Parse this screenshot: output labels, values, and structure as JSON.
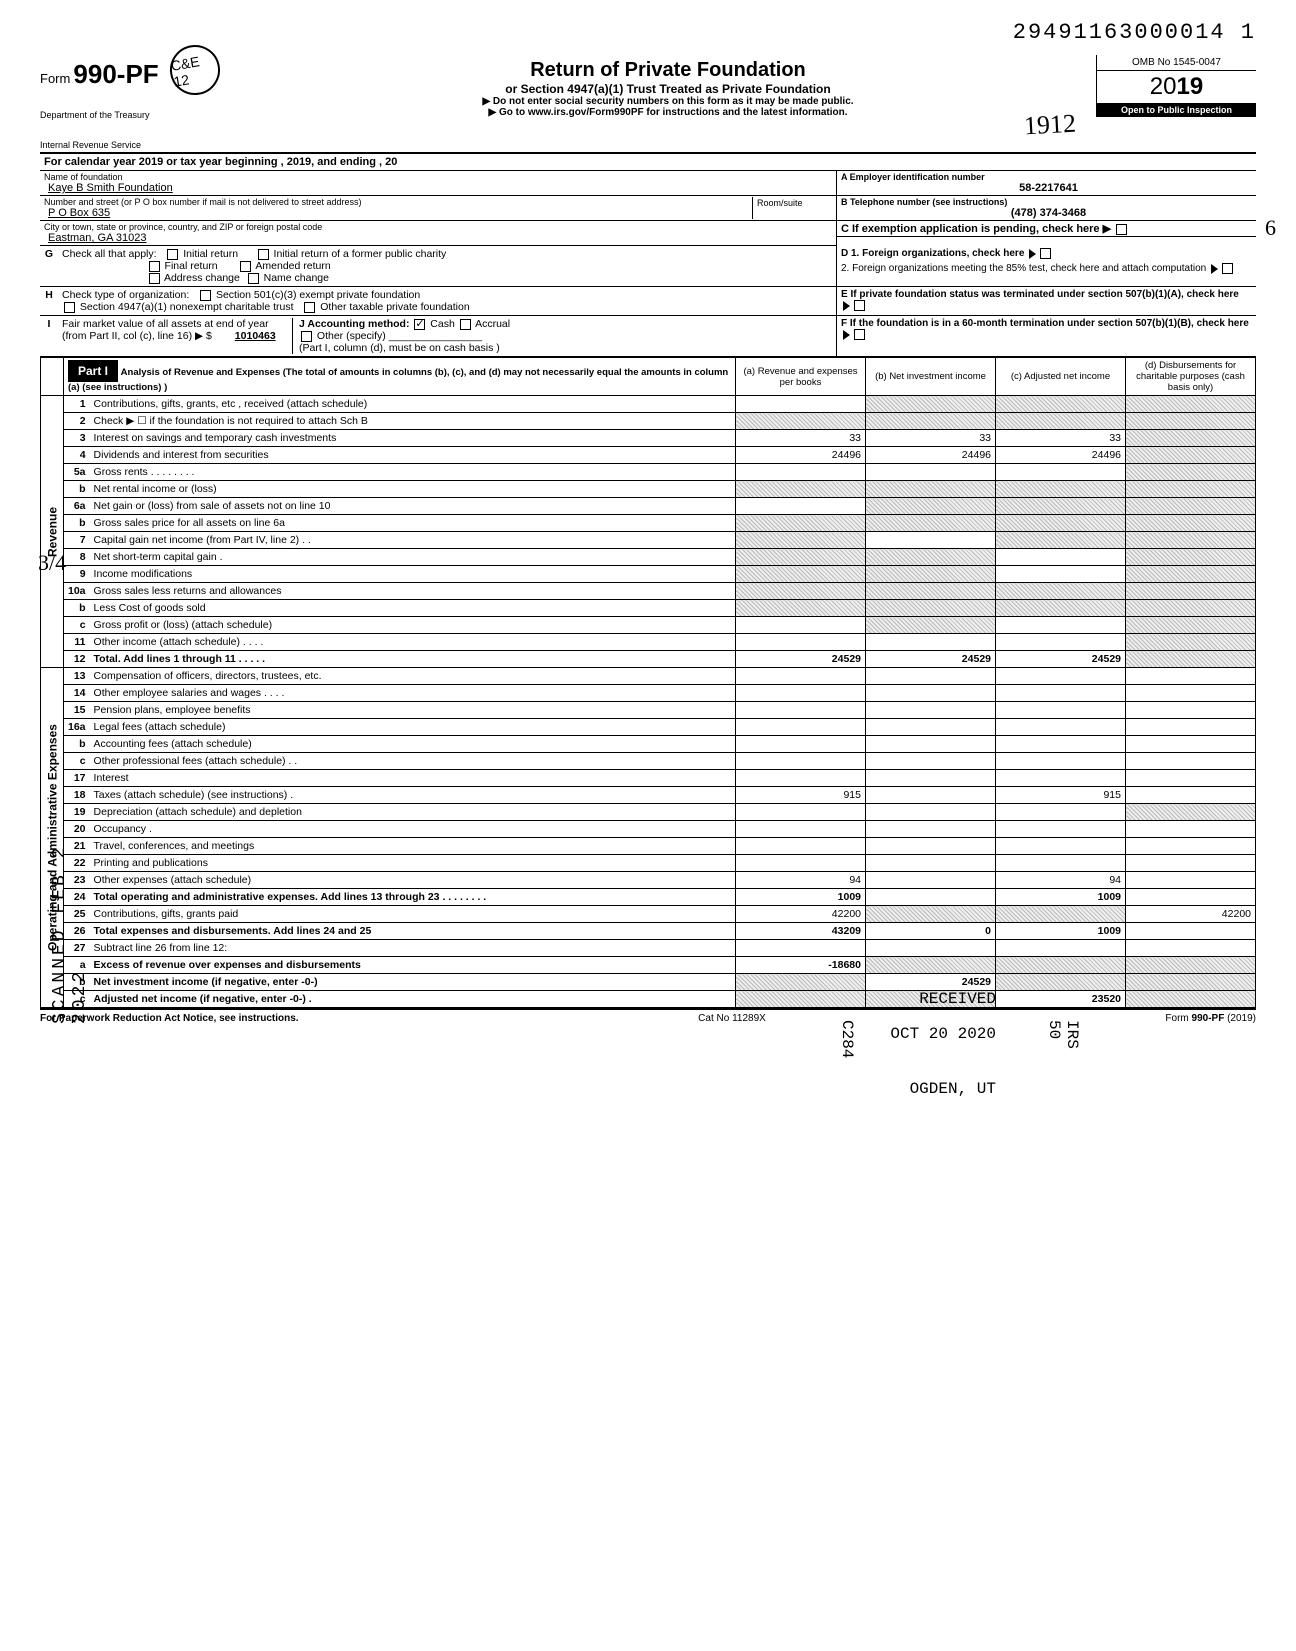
{
  "dln": "29491163000014 1",
  "form_no_prefix": "Form",
  "form_no": "990-PF",
  "stamp_text": "C&E 12",
  "dept1": "Department of the Treasury",
  "dept2": "Internal Revenue Service",
  "title_main": "Return of Private Foundation",
  "title_sub": "or Section 4947(a)(1) Trust Treated as Private Foundation",
  "title_warn": "▶ Do not enter social security numbers on this form as it may be made public.",
  "title_link": "▶ Go to www.irs.gov/Form990PF for instructions and the latest information.",
  "handwritten": "1912",
  "omb": "OMB No 1545-0047",
  "year_outline": "20",
  "year_bold": "19",
  "inspect": "Open to Public Inspection",
  "cal_year": "For calendar year 2019 or tax year beginning                                              , 2019, and ending                                    , 20",
  "name_label": "Name of foundation",
  "name_val": "Kaye B Smith Foundation",
  "ein_label": "A  Employer identification number",
  "ein_val": "58-2217641",
  "street_label": "Number and street (or P O box number if mail is not delivered to street address)",
  "room_label": "Room/suite",
  "street_val": "P O Box 635",
  "phone_label": "B  Telephone number (see instructions)",
  "phone_val": "(478) 374-3468",
  "city_label": "City or town, state or province, country, and ZIP or foreign postal code",
  "city_val": "Eastman, GA 31023",
  "c_label": "C  If exemption application is pending, check here ▶",
  "hand_margin_c": "6",
  "g_label": "G",
  "g_text": "Check all that apply:",
  "g_opts": [
    "Initial return",
    "Final return",
    "Address change",
    "Initial return of a former public charity",
    "Amended return",
    "Name change"
  ],
  "d1": "D  1. Foreign organizations, check here",
  "d2": "2. Foreign organizations meeting the 85% test, check here and attach computation",
  "h_label": "H",
  "h_text": "Check type of organization:",
  "h_opts": [
    "Section 501(c)(3) exempt private foundation",
    "Section 4947(a)(1) nonexempt charitable trust",
    "Other taxable private foundation"
  ],
  "e_text": "E  If private foundation status was terminated under section 507(b)(1)(A), check here",
  "i_label": "I",
  "i_text1": "Fair market value of all assets at end of year  (from Part II, col (c), line 16) ▶ $",
  "i_val": "1010463",
  "j_text": "J   Accounting method:",
  "j_opts": [
    "Cash",
    "Accrual"
  ],
  "j_other": "Other (specify)",
  "j_note": "(Part I, column (d), must be on cash basis )",
  "f_text": "F  If the foundation is in a 60-month termination under section 507(b)(1)(B), check here",
  "part1_label": "Part I",
  "part1_desc": "Analysis of Revenue and Expenses (The total of amounts in columns (b), (c), and (d) may not necessarily equal the amounts in column (a) (see instructions) )",
  "col_a": "(a) Revenue and expenses per books",
  "col_b": "(b) Net investment income",
  "col_c": "(c) Adjusted net income",
  "col_d": "(d) Disbursements for charitable purposes (cash basis only)",
  "side_rev": "Revenue",
  "side_exp": "Operating and Administrative Expenses",
  "side_scanned": "SCANNED  FEB 2 2022",
  "margin_hand": "3/4",
  "rows": [
    {
      "n": "1",
      "d": "Contributions, gifts, grants, etc , received (attach schedule)",
      "a": "",
      "b": "shade",
      "c": "shade",
      "dd": "shade"
    },
    {
      "n": "2",
      "d": "Check ▶ ☐  if the foundation is not required to attach Sch B",
      "a": "shade",
      "b": "shade",
      "c": "shade",
      "dd": "shade"
    },
    {
      "n": "3",
      "d": "Interest on savings and temporary cash investments",
      "a": "33",
      "b": "33",
      "c": "33",
      "dd": "shade"
    },
    {
      "n": "4",
      "d": "Dividends and interest from securities",
      "a": "24496",
      "b": "24496",
      "c": "24496",
      "dd": "shade"
    },
    {
      "n": "5a",
      "d": "Gross rents  .   .   .   .   .   .   .   .",
      "a": "",
      "b": "",
      "c": "",
      "dd": "shade"
    },
    {
      "n": "b",
      "d": "Net rental income or (loss)",
      "a": "shade",
      "b": "shade",
      "c": "shade",
      "dd": "shade"
    },
    {
      "n": "6a",
      "d": "Net gain or (loss) from sale of assets not on line 10",
      "a": "",
      "b": "shade",
      "c": "shade",
      "dd": "shade"
    },
    {
      "n": "b",
      "d": "Gross sales price for all assets on line 6a",
      "a": "shade",
      "b": "shade",
      "c": "shade",
      "dd": "shade"
    },
    {
      "n": "7",
      "d": "Capital gain net income (from Part IV, line 2)   .   .",
      "a": "shade",
      "b": "",
      "c": "shade",
      "dd": "shade"
    },
    {
      "n": "8",
      "d": "Net short-term capital gain  .",
      "a": "shade",
      "b": "shade",
      "c": "",
      "dd": "shade"
    },
    {
      "n": "9",
      "d": "Income modifications",
      "a": "shade",
      "b": "shade",
      "c": "",
      "dd": "shade"
    },
    {
      "n": "10a",
      "d": "Gross sales less returns and allowances",
      "a": "shade",
      "b": "shade",
      "c": "shade",
      "dd": "shade"
    },
    {
      "n": "b",
      "d": "Less  Cost of goods sold",
      "a": "shade",
      "b": "shade",
      "c": "shade",
      "dd": "shade"
    },
    {
      "n": "c",
      "d": "Gross profit or (loss) (attach schedule)",
      "a": "",
      "b": "shade",
      "c": "",
      "dd": "shade"
    },
    {
      "n": "11",
      "d": "Other income (attach schedule)   .   .   .   .",
      "a": "",
      "b": "",
      "c": "",
      "dd": "shade"
    },
    {
      "n": "12",
      "d": "Total. Add lines 1 through 11  .   .   .   .   .",
      "a": "24529",
      "b": "24529",
      "c": "24529",
      "dd": "shade",
      "bold": true
    },
    {
      "n": "13",
      "d": "Compensation of officers, directors, trustees, etc.",
      "a": "",
      "b": "",
      "c": "",
      "dd": ""
    },
    {
      "n": "14",
      "d": "Other employee salaries and wages  .   .   .   .",
      "a": "",
      "b": "",
      "c": "",
      "dd": ""
    },
    {
      "n": "15",
      "d": "Pension plans, employee benefits",
      "a": "",
      "b": "",
      "c": "",
      "dd": ""
    },
    {
      "n": "16a",
      "d": "Legal fees (attach schedule)",
      "a": "",
      "b": "",
      "c": "",
      "dd": ""
    },
    {
      "n": "b",
      "d": "Accounting fees (attach schedule)",
      "a": "",
      "b": "",
      "c": "",
      "dd": ""
    },
    {
      "n": "c",
      "d": "Other professional fees (attach schedule)   .   .",
      "a": "",
      "b": "",
      "c": "",
      "dd": ""
    },
    {
      "n": "17",
      "d": "Interest",
      "a": "",
      "b": "",
      "c": "",
      "dd": ""
    },
    {
      "n": "18",
      "d": "Taxes (attach schedule) (see instructions)  .",
      "a": "915",
      "b": "",
      "c": "915",
      "dd": ""
    },
    {
      "n": "19",
      "d": "Depreciation (attach schedule) and depletion",
      "a": "",
      "b": "",
      "c": "",
      "dd": "shade"
    },
    {
      "n": "20",
      "d": "Occupancy  .",
      "a": "",
      "b": "",
      "c": "",
      "dd": ""
    },
    {
      "n": "21",
      "d": "Travel, conferences, and meetings",
      "a": "",
      "b": "",
      "c": "",
      "dd": ""
    },
    {
      "n": "22",
      "d": "Printing and publications",
      "a": "",
      "b": "",
      "c": "",
      "dd": ""
    },
    {
      "n": "23",
      "d": "Other expenses (attach schedule)",
      "a": "94",
      "b": "",
      "c": "94",
      "dd": ""
    },
    {
      "n": "24",
      "d": "Total operating and administrative expenses. Add lines 13 through 23 .   .   .   .   .   .   .   .",
      "a": "1009",
      "b": "",
      "c": "1009",
      "dd": "",
      "bold": true
    },
    {
      "n": "25",
      "d": "Contributions, gifts, grants paid",
      "a": "42200",
      "b": "shade",
      "c": "shade",
      "dd": "42200"
    },
    {
      "n": "26",
      "d": "Total expenses and disbursements. Add lines 24 and 25",
      "a": "43209",
      "b": "0",
      "c": "1009",
      "dd": "",
      "bold": true
    },
    {
      "n": "27",
      "d": "Subtract line 26 from line 12:",
      "a": "",
      "b": "",
      "c": "",
      "dd": "",
      "noborder": true
    },
    {
      "n": "a",
      "d": "Excess of revenue over expenses and disbursements",
      "a": "-18680",
      "b": "shade",
      "c": "shade",
      "dd": "shade",
      "bold": true
    },
    {
      "n": "b",
      "d": "Net investment income (if negative, enter -0-)",
      "a": "shade",
      "b": "24529",
      "c": "shade",
      "dd": "shade",
      "bold": true
    },
    {
      "n": "c",
      "d": "Adjusted net income (if negative, enter -0-)  .",
      "a": "shade",
      "b": "shade",
      "c": "23520",
      "dd": "shade",
      "bold": true
    }
  ],
  "recv1": "RECEIVED",
  "recv2": "OCT 20 2020",
  "recv3": "OGDEN, UT",
  "recv_side_l": "C284",
  "recv_side_r": "IRS 50",
  "footer_left": "For Paperwork Reduction Act Notice, see instructions.",
  "footer_mid": "Cat No  11289X",
  "footer_right_a": "Form ",
  "footer_right_b": "990-PF",
  "footer_right_c": " (2019)"
}
